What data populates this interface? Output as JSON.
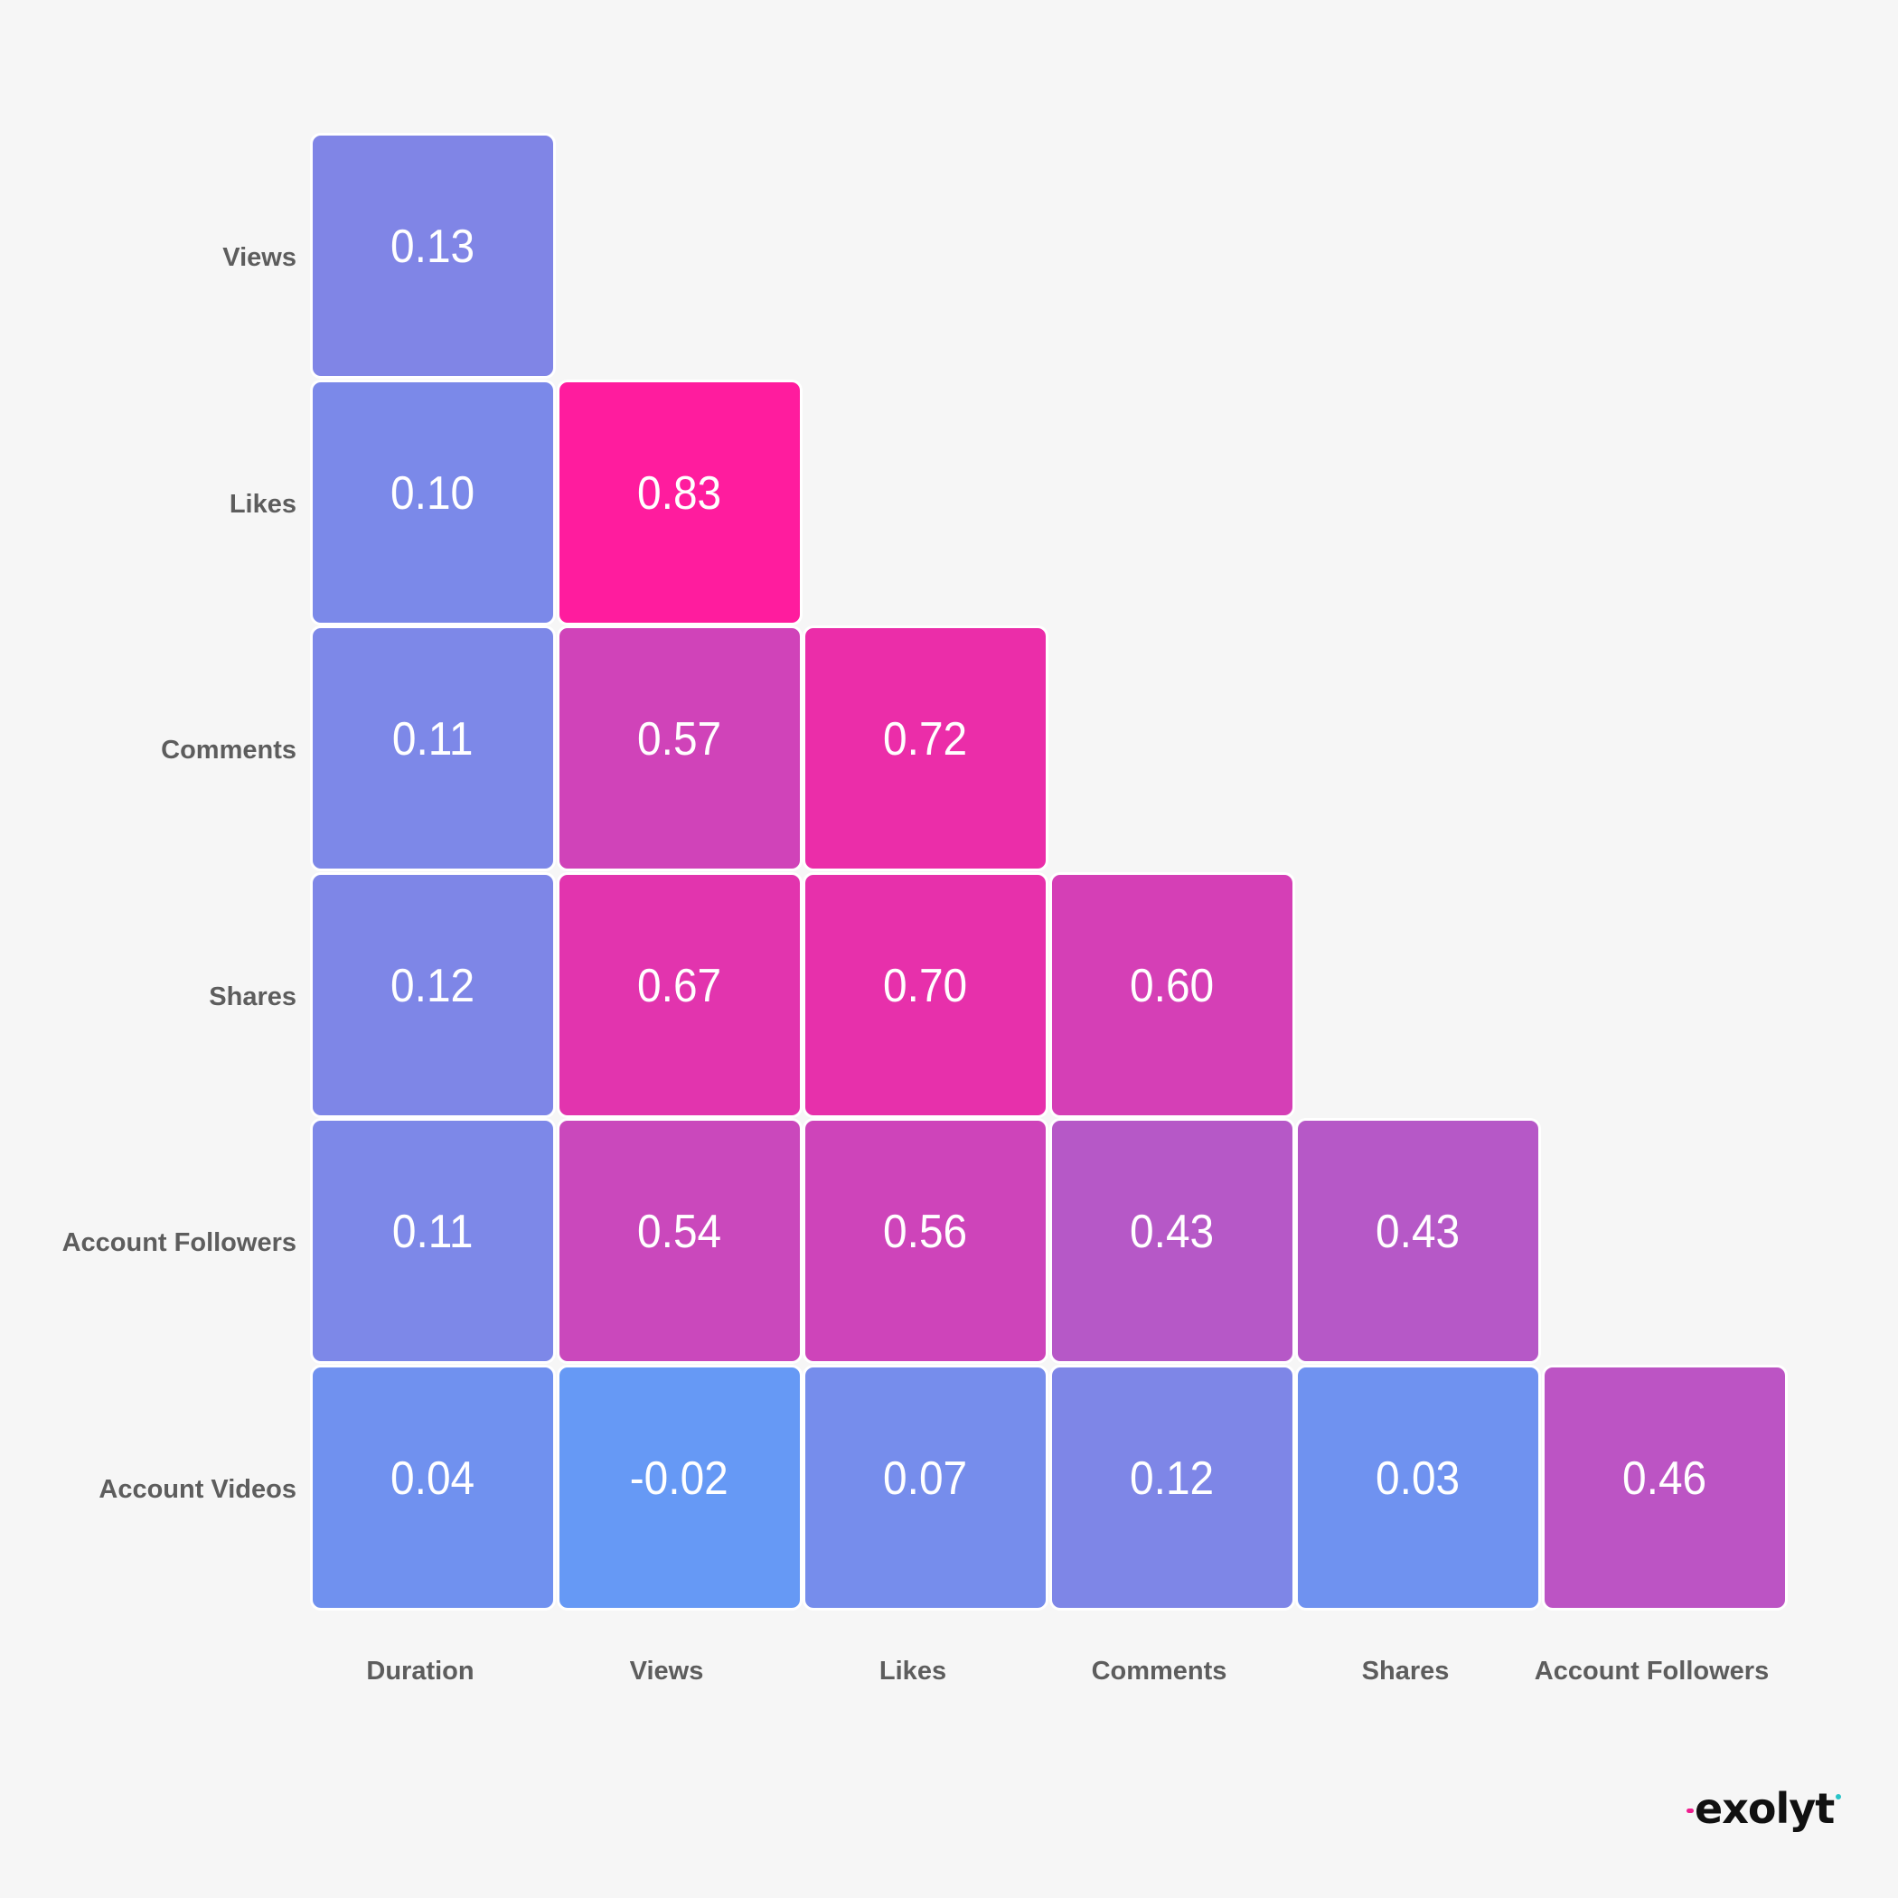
{
  "chart_data": {
    "type": "heatmap",
    "title": "",
    "subtitle": "",
    "xlabel": "",
    "ylabel": "",
    "variant": "lower-triangular correlation matrix",
    "row_labels": [
      "Views",
      "Likes",
      "Comments",
      "Shares",
      "Account Followers",
      "Account Videos"
    ],
    "col_labels": [
      "Duration",
      "Views",
      "Likes",
      "Comments",
      "Shares",
      "Account Followers"
    ],
    "matrix": [
      [
        0.13,
        null,
        null,
        null,
        null,
        null
      ],
      [
        0.1,
        0.83,
        null,
        null,
        null,
        null
      ],
      [
        0.11,
        0.57,
        0.72,
        null,
        null,
        null
      ],
      [
        0.12,
        0.67,
        0.7,
        0.6,
        null,
        null
      ],
      [
        0.11,
        0.54,
        0.56,
        0.43,
        0.43,
        null
      ],
      [
        0.04,
        -0.02,
        0.07,
        0.12,
        0.03,
        0.46
      ]
    ],
    "value_labels": [
      [
        "0.13",
        null,
        null,
        null,
        null,
        null
      ],
      [
        "0.10",
        "0.83",
        null,
        null,
        null,
        null
      ],
      [
        "0.11",
        "0.57",
        "0.72",
        null,
        null,
        null
      ],
      [
        "0.12",
        "0.67",
        "0.70",
        "0.60",
        null,
        null
      ],
      [
        "0.11",
        "0.54",
        "0.56",
        "0.43",
        "0.43",
        null
      ],
      [
        "0.04",
        "-0.02",
        "0.07",
        "0.12",
        "0.03",
        "0.46"
      ]
    ],
    "colorscale": {
      "low_value": -0.02,
      "low_color": "#6699f5",
      "mid_value": 0.13,
      "mid_color": "#8085e6",
      "high_value": 0.83,
      "high_color": "#ff1c9e"
    },
    "legend": "none",
    "grid": false
  },
  "branding": {
    "logo_text": "exolyt",
    "logo_dash_color": "#ee1f8f",
    "logo_dot_color": "#29c4c8"
  },
  "colors": {
    "background": "#f6f6f6",
    "label_text": "#5d5d5d",
    "cell_text": "#ffffff",
    "cell_border": "#ffffff"
  }
}
